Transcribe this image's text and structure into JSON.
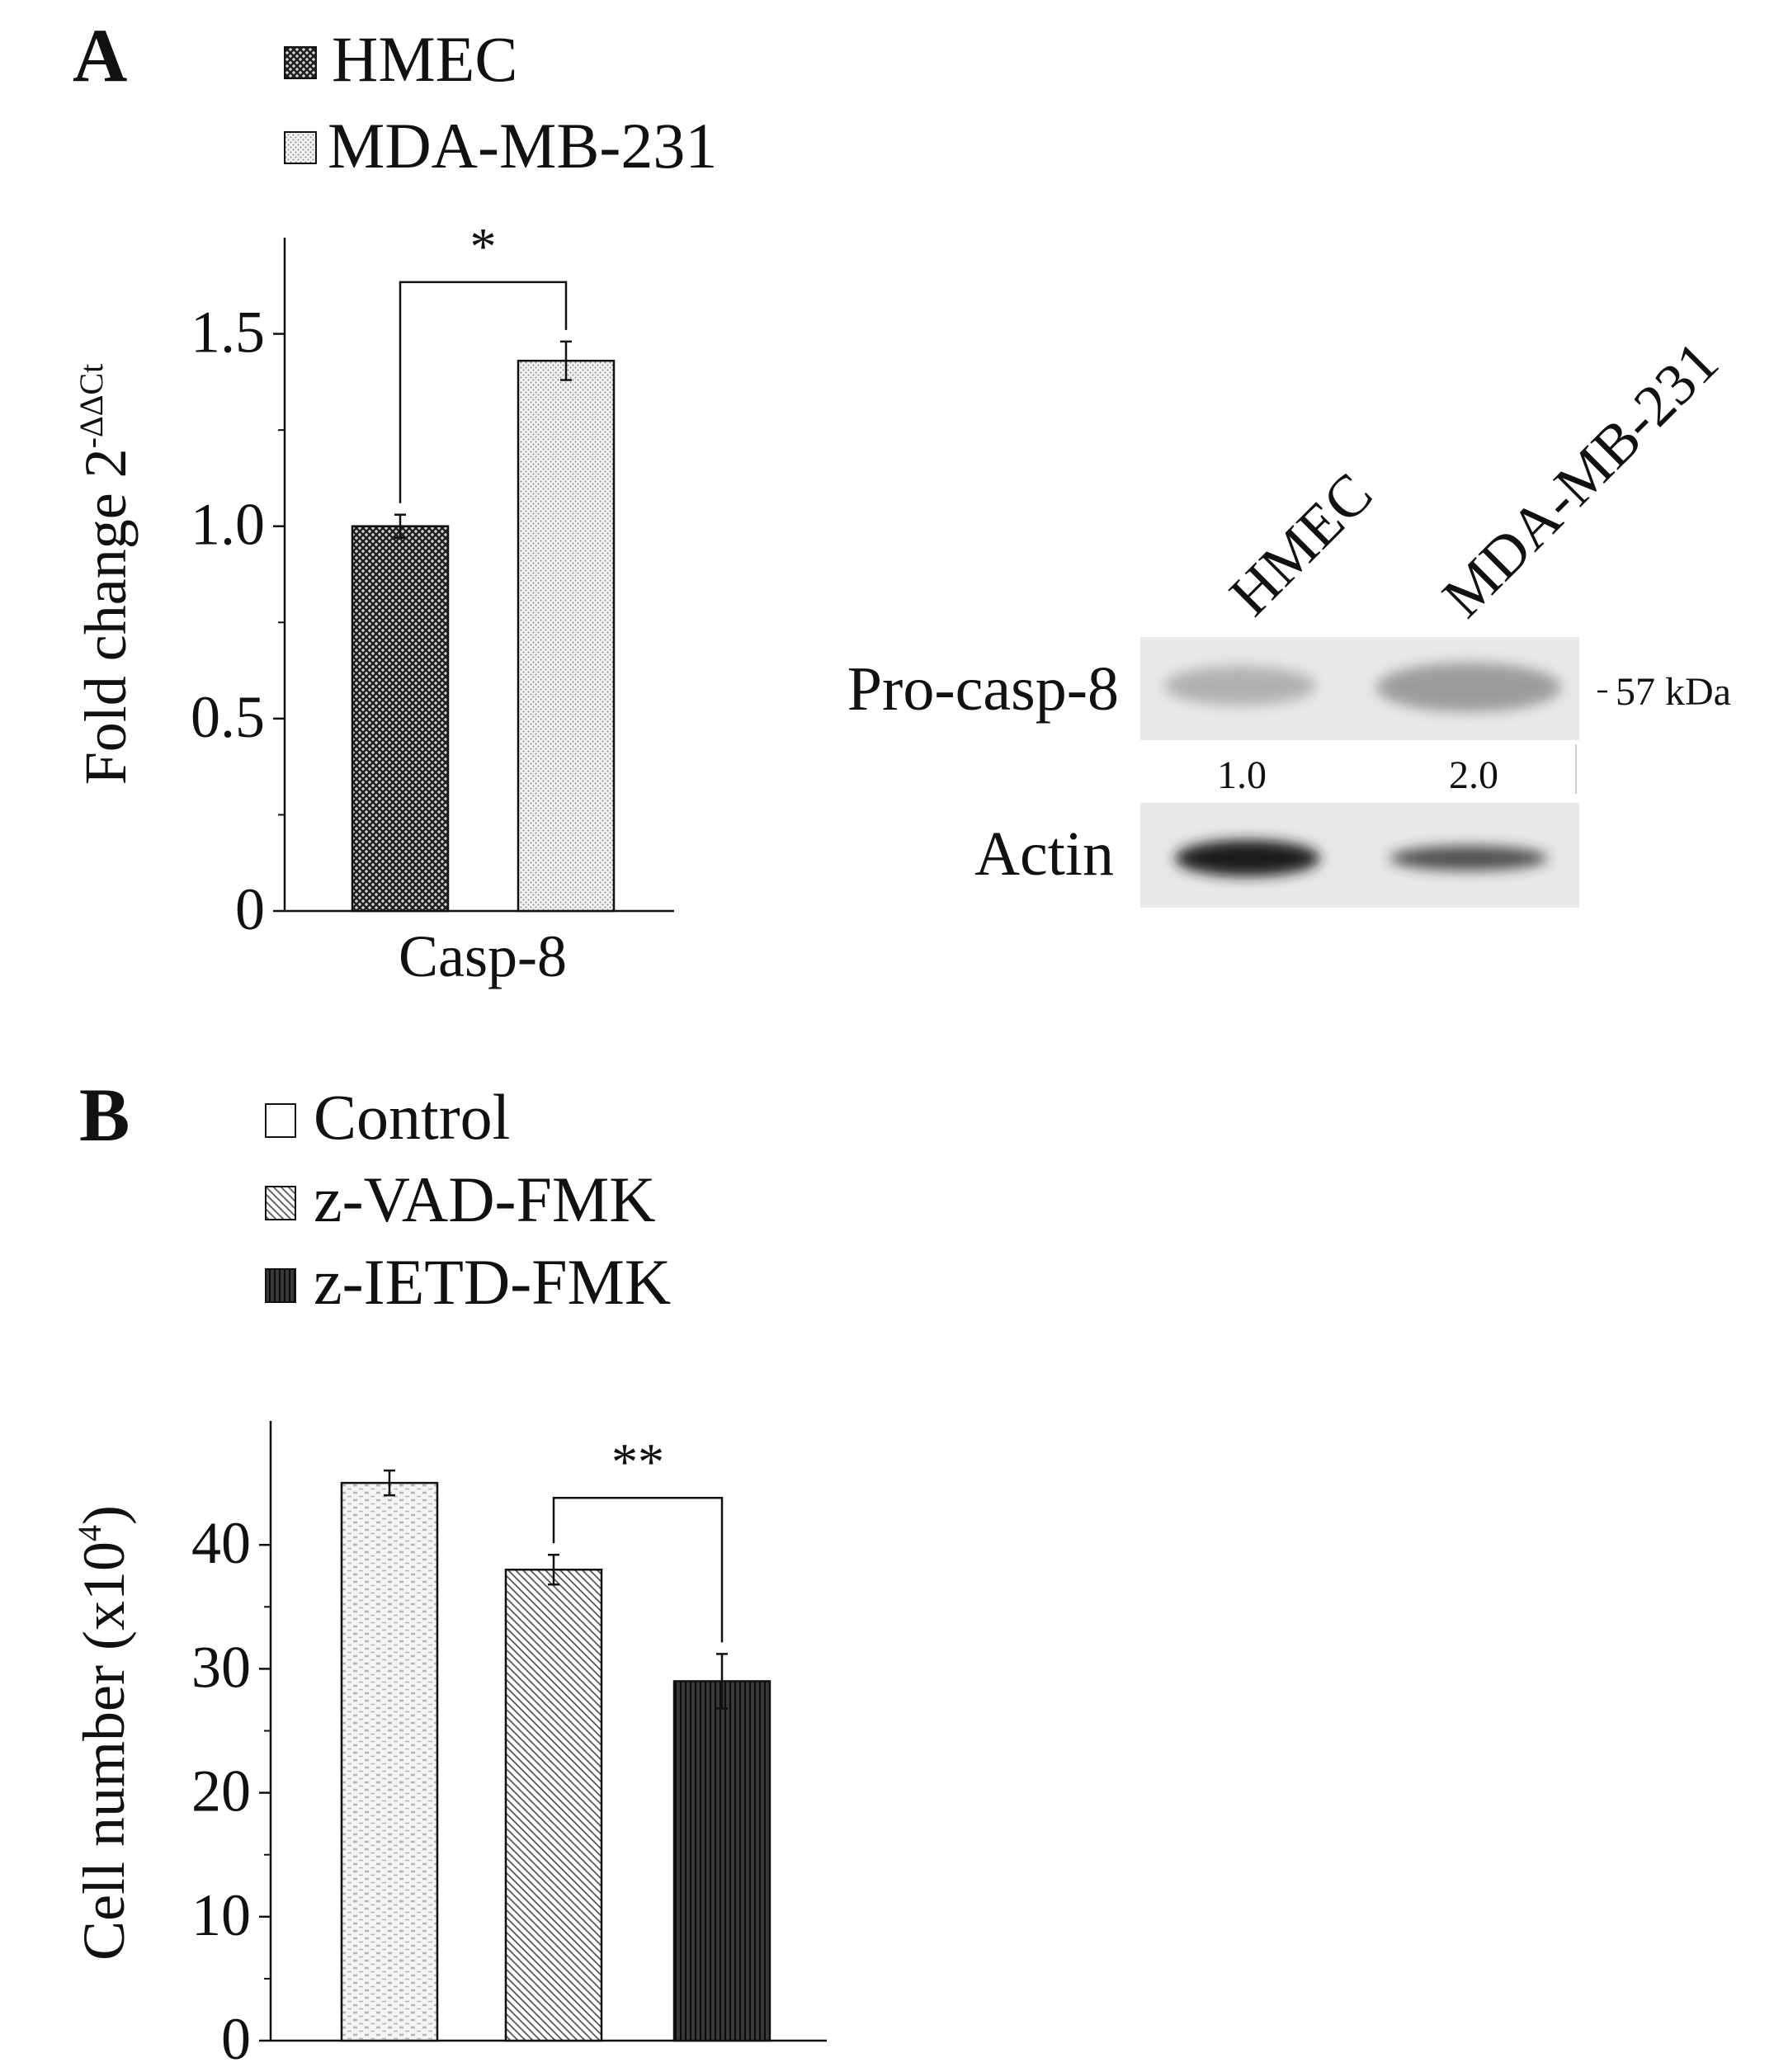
{
  "panel_a": {
    "letter": "A",
    "legend": [
      {
        "label": "HMEC",
        "pattern": "pat-dense"
      },
      {
        "label": "MDA-MB-231",
        "pattern": "pat-dots"
      }
    ]
  },
  "panel_b": {
    "letter": "B",
    "legend": [
      {
        "label": "Control",
        "pattern": "pat-white"
      },
      {
        "label": "z-VAD-FMK",
        "pattern": "pat-diag"
      },
      {
        "label": "z-IETD-FMK",
        "pattern": "pat-vert"
      }
    ]
  },
  "blot": {
    "lanes": [
      "HMEC",
      "MDA-MB-231"
    ],
    "rows": [
      {
        "label": "Pro-casp-8",
        "intensity": [
          0.35,
          0.5
        ]
      },
      {
        "label": "Actin",
        "intensity": [
          1.0,
          0.7
        ]
      }
    ],
    "quant": [
      "1.0",
      "2.0"
    ],
    "marker": "57 kDa"
  },
  "chart_data": [
    {
      "type": "bar",
      "categories": [
        "Casp-8"
      ],
      "series": [
        {
          "name": "HMEC",
          "values": [
            1.0
          ],
          "errors": [
            0.03
          ]
        },
        {
          "name": "MDA-MB-231",
          "values": [
            1.43
          ],
          "errors": [
            0.05
          ]
        }
      ],
      "xlabel": "Casp-8",
      "ylabel": "Fold change 2",
      "ylabel_sup": "-ΔΔCt",
      "ylim": [
        0,
        1.75
      ],
      "yticks": [
        0,
        0.5,
        1.0,
        1.5
      ],
      "ytick_labels": [
        "0",
        "0.5",
        "1.0",
        "1.5"
      ],
      "significance": [
        {
          "between": [
            0,
            1
          ],
          "label": "*"
        }
      ]
    },
    {
      "type": "bar",
      "categories": [
        "Control",
        "z-VAD-FMK",
        "z-IETD-FMK"
      ],
      "values": [
        45,
        38,
        29
      ],
      "errors": [
        1,
        1.2,
        2.2
      ],
      "xlabel": "",
      "ylabel": "Cell number (x10",
      "ylabel_sup": "4",
      "ylabel_end": ")",
      "ylim": [
        0,
        50
      ],
      "yticks": [
        0,
        10,
        20,
        30,
        40
      ],
      "ytick_labels": [
        "0",
        "10",
        "20",
        "30",
        "40"
      ],
      "significance": [
        {
          "between": [
            1,
            2
          ],
          "label": "**"
        }
      ]
    }
  ]
}
